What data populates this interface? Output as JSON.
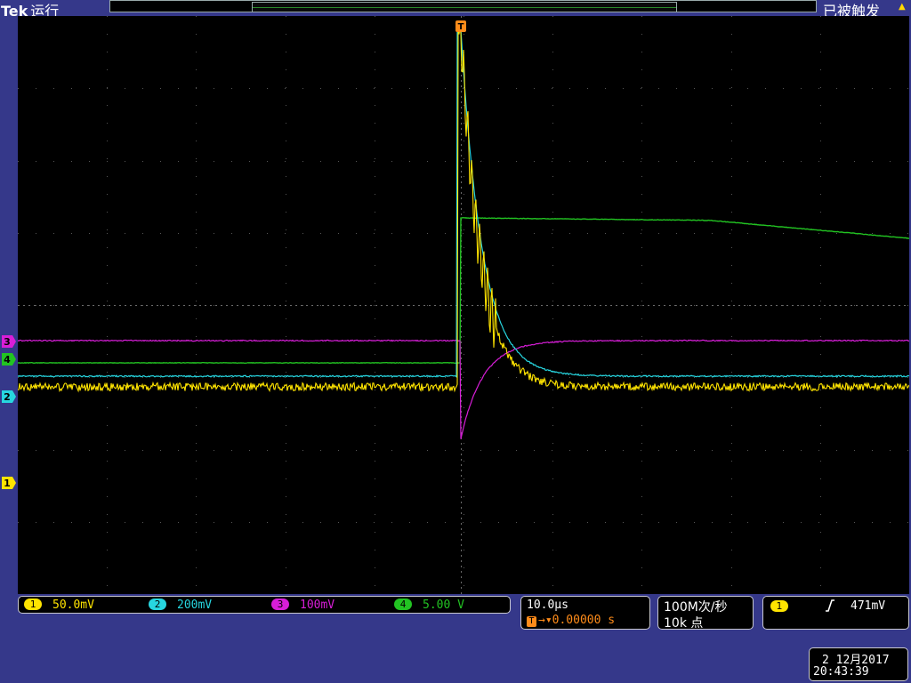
{
  "header": {
    "brand": "Tek",
    "run_state": "运行",
    "trigger_status": "已被触发"
  },
  "channels": [
    {
      "num": "1",
      "scale": "50.0mV",
      "color": "#ffe400",
      "marker_label": "1"
    },
    {
      "num": "2",
      "scale": "200mV",
      "color": "#27d6e0",
      "marker_label": "2"
    },
    {
      "num": "3",
      "scale": "100mV",
      "color": "#d81ed8",
      "marker_label": "3"
    },
    {
      "num": "4",
      "scale": "5.00 V",
      "color": "#22c322",
      "marker_label": "4"
    }
  ],
  "horizontal": {
    "timebase": "10.0µs",
    "trigger_offset": "0.00000 s",
    "trigger_marker": "T"
  },
  "acquisition": {
    "sample_rate": "100M次/秒",
    "record_length": "10k 点"
  },
  "trigger": {
    "source": "1",
    "slope_icon": "rising-edge-icon",
    "level": "471mV"
  },
  "datetime": {
    "date": "2 12月2017",
    "time": "20:43:39"
  },
  "colors": {
    "background": "#35388a",
    "screen": "#000000",
    "trigger": "#ff8c1a"
  }
}
